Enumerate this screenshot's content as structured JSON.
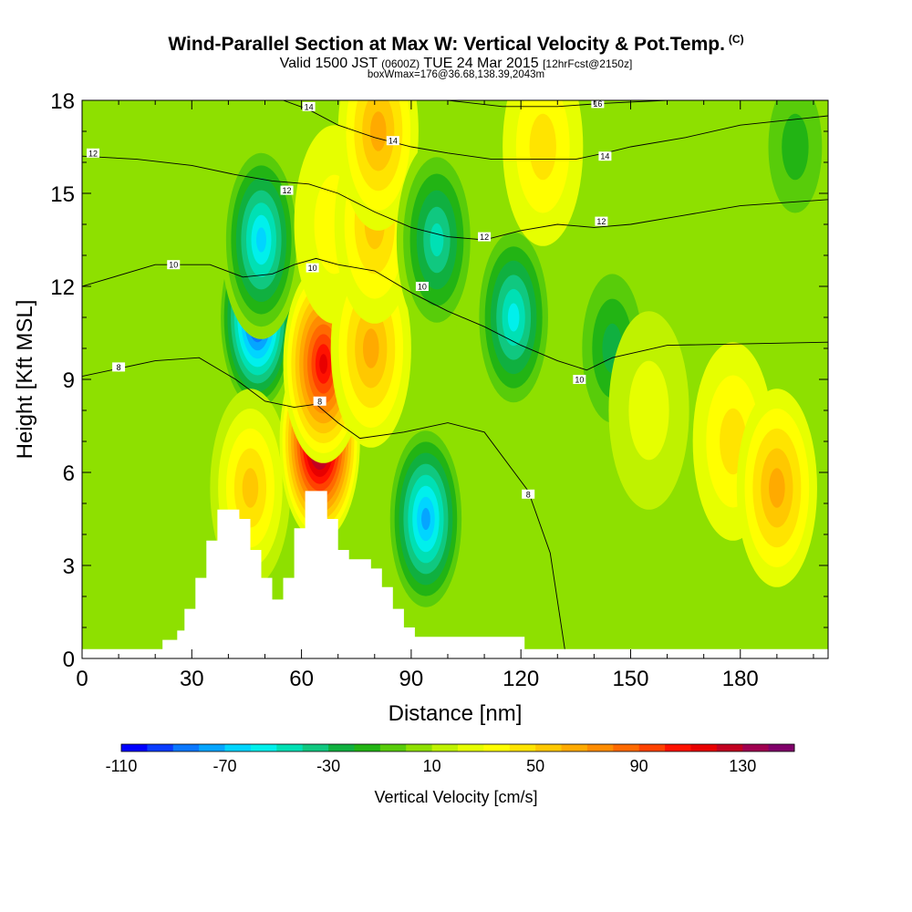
{
  "titles": {
    "main": "Wind-Parallel Section at Max W: Vertical Velocity & Pot.Temp.",
    "copyright": "(C)",
    "valid_a": "Valid 1500 JST",
    "valid_z": "(0600Z)",
    "valid_b": "TUE 24 Mar 2015",
    "fcst": "[12hrFcst@2150z]",
    "box": "boxWmax=176@36.68,138.39,2043m"
  },
  "chart_data": {
    "type": "heatmap",
    "xlabel": "Distance [nm]",
    "ylabel": "Height [Kft MSL]",
    "xlim": [
      0,
      204
    ],
    "ylim": [
      0,
      18
    ],
    "x_ticks": [
      0,
      30,
      60,
      90,
      120,
      150,
      180
    ],
    "y_ticks": [
      0,
      3,
      6,
      9,
      12,
      15,
      18
    ],
    "colorbar": {
      "label": "Vertical Velocity [cm/s]",
      "range": [
        -110,
        150
      ],
      "tick_values": [
        -110,
        -70,
        -30,
        10,
        50,
        90,
        130
      ],
      "colors": [
        "#0000ff",
        "#0a3cff",
        "#0b78ff",
        "#05a5ff",
        "#00d5ff",
        "#00f0ec",
        "#00e0b4",
        "#10c880",
        "#10b040",
        "#22b414",
        "#58cc0a",
        "#8ee000",
        "#bff200",
        "#e6ff00",
        "#ffff00",
        "#ffe400",
        "#ffc800",
        "#ffaa00",
        "#ff8c00",
        "#ff6a00",
        "#ff4200",
        "#ff1200",
        "#e80000",
        "#c20020",
        "#a00050",
        "#80006a"
      ]
    },
    "w_centers": [
      {
        "x": 48,
        "y": 11,
        "w": -110
      },
      {
        "x": 49,
        "y": 13.5,
        "w": -70
      },
      {
        "x": 46,
        "y": 5.5,
        "w": 55
      },
      {
        "x": 65,
        "y": 7,
        "w": 150
      },
      {
        "x": 66,
        "y": 9.5,
        "w": 110
      },
      {
        "x": 69,
        "y": 14,
        "w": 30
      },
      {
        "x": 79,
        "y": 10,
        "w": 60
      },
      {
        "x": 80,
        "y": 14,
        "w": 50
      },
      {
        "x": 81,
        "y": 17,
        "w": 60
      },
      {
        "x": 94,
        "y": 4.5,
        "w": -80
      },
      {
        "x": 97,
        "y": 13.5,
        "w": -50
      },
      {
        "x": 118,
        "y": 11,
        "w": -60
      },
      {
        "x": 126,
        "y": 16.5,
        "w": 40
      },
      {
        "x": 145,
        "y": 10,
        "w": -25
      },
      {
        "x": 155,
        "y": 8,
        "w": 25
      },
      {
        "x": 178,
        "y": 7,
        "w": 40
      },
      {
        "x": 190,
        "y": 5.5,
        "w": 60
      },
      {
        "x": 195,
        "y": 16.5,
        "w": -15
      }
    ],
    "terrain": [
      [
        0,
        0.3
      ],
      [
        22,
        0.3
      ],
      [
        22,
        0.6
      ],
      [
        26,
        0.6
      ],
      [
        26,
        0.9
      ],
      [
        28,
        0.9
      ],
      [
        28,
        1.6
      ],
      [
        31,
        1.6
      ],
      [
        31,
        2.6
      ],
      [
        34,
        2.6
      ],
      [
        34,
        3.8
      ],
      [
        37,
        3.8
      ],
      [
        37,
        4.8
      ],
      [
        43,
        4.8
      ],
      [
        43,
        4.5
      ],
      [
        46,
        4.5
      ],
      [
        46,
        3.5
      ],
      [
        49,
        3.5
      ],
      [
        49,
        2.6
      ],
      [
        52,
        2.6
      ],
      [
        52,
        1.9
      ],
      [
        55,
        1.9
      ],
      [
        55,
        2.6
      ],
      [
        58,
        2.6
      ],
      [
        58,
        4.2
      ],
      [
        61,
        4.2
      ],
      [
        61,
        5.4
      ],
      [
        67,
        5.4
      ],
      [
        67,
        4.5
      ],
      [
        70,
        4.5
      ],
      [
        70,
        3.5
      ],
      [
        73,
        3.5
      ],
      [
        73,
        3.2
      ],
      [
        79,
        3.2
      ],
      [
        79,
        2.9
      ],
      [
        82,
        2.9
      ],
      [
        82,
        2.3
      ],
      [
        85,
        2.3
      ],
      [
        85,
        1.6
      ],
      [
        88,
        1.6
      ],
      [
        88,
        1.0
      ],
      [
        91,
        1.0
      ],
      [
        91,
        0.7
      ],
      [
        121,
        0.7
      ],
      [
        121,
        0.3
      ],
      [
        204,
        0.3
      ]
    ],
    "theta_contours": [
      {
        "level": "8",
        "pts": [
          [
            0,
            9.1
          ],
          [
            20,
            9.6
          ],
          [
            32,
            9.7
          ],
          [
            42,
            9.0
          ],
          [
            50,
            8.3
          ],
          [
            58,
            8.1
          ],
          [
            64,
            8.2
          ],
          [
            70,
            7.6
          ],
          [
            76,
            7.1
          ],
          [
            88,
            7.3
          ],
          [
            100,
            7.6
          ],
          [
            110,
            7.3
          ],
          [
            122,
            5.4
          ],
          [
            128,
            3.4
          ],
          [
            132,
            0.3
          ]
        ],
        "label_at": [
          [
            10,
            9.4
          ],
          [
            65,
            8.3
          ],
          [
            122,
            5.3
          ]
        ]
      },
      {
        "level": "10",
        "pts": [
          [
            0,
            12.0
          ],
          [
            20,
            12.7
          ],
          [
            35,
            12.7
          ],
          [
            44,
            12.3
          ],
          [
            52,
            12.4
          ],
          [
            58,
            12.7
          ],
          [
            64,
            12.9
          ],
          [
            70,
            12.7
          ],
          [
            80,
            12.5
          ],
          [
            90,
            11.8
          ],
          [
            100,
            11.2
          ],
          [
            110,
            10.7
          ],
          [
            120,
            10.1
          ],
          [
            130,
            9.6
          ],
          [
            138,
            9.3
          ],
          [
            145,
            9.7
          ],
          [
            160,
            10.1
          ],
          [
            204,
            10.2
          ]
        ],
        "label_at": [
          [
            25,
            12.7
          ],
          [
            63,
            12.6
          ],
          [
            93,
            12.0
          ],
          [
            136,
            9.0
          ]
        ]
      },
      {
        "level": "12",
        "pts": [
          [
            0,
            16.2
          ],
          [
            15,
            16.1
          ],
          [
            30,
            15.9
          ],
          [
            42,
            15.6
          ],
          [
            52,
            15.4
          ],
          [
            62,
            15.3
          ],
          [
            70,
            15.0
          ],
          [
            80,
            14.4
          ],
          [
            90,
            13.9
          ],
          [
            100,
            13.6
          ],
          [
            110,
            13.5
          ],
          [
            120,
            13.8
          ],
          [
            130,
            14.0
          ],
          [
            140,
            13.9
          ],
          [
            150,
            14.0
          ],
          [
            165,
            14.3
          ],
          [
            180,
            14.6
          ],
          [
            204,
            14.8
          ]
        ],
        "label_at": [
          [
            3,
            16.3
          ],
          [
            56,
            15.1
          ],
          [
            110,
            13.6
          ],
          [
            142,
            14.1
          ]
        ]
      },
      {
        "level": "14",
        "pts": [
          [
            55,
            18.0
          ],
          [
            62,
            17.7
          ],
          [
            70,
            17.2
          ],
          [
            80,
            16.8
          ],
          [
            90,
            16.5
          ],
          [
            100,
            16.3
          ],
          [
            112,
            16.1
          ],
          [
            125,
            16.1
          ],
          [
            135,
            16.1
          ],
          [
            143,
            16.3
          ],
          [
            150,
            16.5
          ],
          [
            165,
            16.8
          ],
          [
            180,
            17.2
          ],
          [
            204,
            17.5
          ]
        ],
        "label_at": [
          [
            62,
            17.8
          ],
          [
            85,
            16.7
          ],
          [
            143,
            16.2
          ]
        ]
      },
      {
        "level": "16",
        "pts": [
          [
            100,
            18.0
          ],
          [
            115,
            17.8
          ],
          [
            130,
            17.8
          ],
          [
            142,
            17.9
          ],
          [
            160,
            18.0
          ]
        ],
        "label_at": [
          [
            141,
            17.9
          ]
        ]
      }
    ]
  }
}
